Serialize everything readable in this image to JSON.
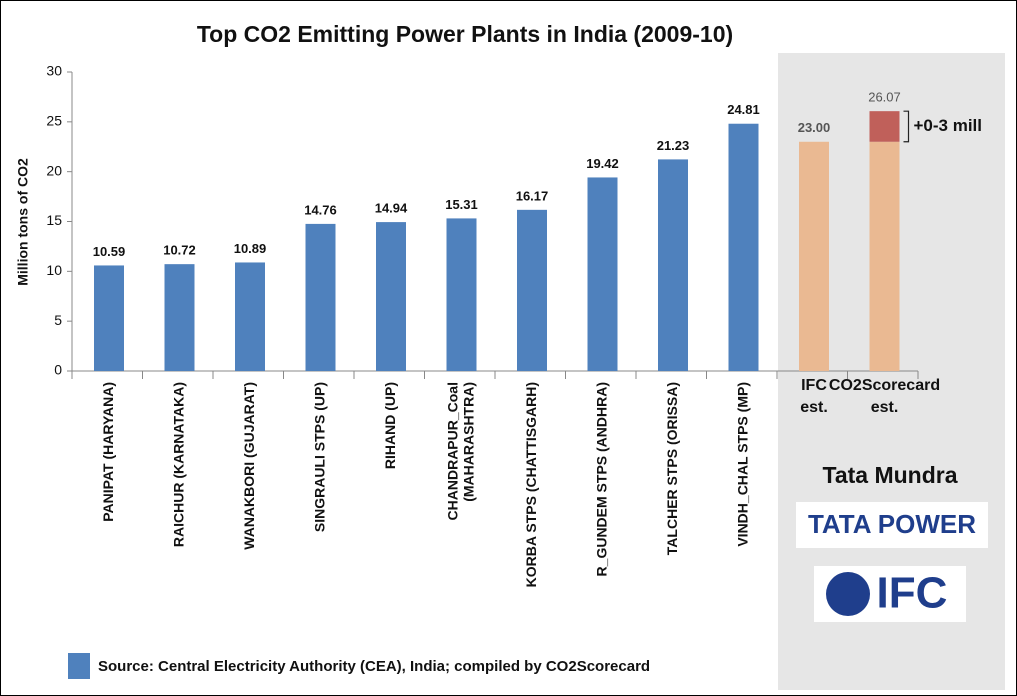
{
  "chart_data": {
    "type": "bar",
    "title": "Top CO2 Emitting Power Plants in India (2009-10)",
    "y_label": "Million tons of CO2",
    "categories": [
      "PANIPAT (HARYANA)",
      "RAICHUR (KARNATAKA)",
      "WANAKBORI (GUJARAT)",
      "SINGRAULI STPS (UP)",
      "RIHAND (UP)",
      "CHANDRAPUR_Coal\n(MAHARASHTRA)",
      "KORBA STPS (CHATTISGARH)",
      "R_GUNDEM STPS (ANDHRA)",
      "TALCHER STPS (ORISSA)",
      "VINDH_CHAL STPS (MP)",
      "IFC\nest.",
      "CO2Scorecard\nest."
    ],
    "series": [
      {
        "name": "Source: Central Electricity Authority (CEA), India; compiled by CO2Scorecard",
        "color": "#4f81bd",
        "values": [
          10.59,
          10.72,
          10.89,
          14.76,
          14.94,
          15.31,
          16.17,
          19.42,
          21.23,
          24.81,
          null,
          null
        ]
      },
      {
        "color": "#eab992",
        "values": [
          null,
          null,
          null,
          null,
          null,
          null,
          null,
          null,
          null,
          null,
          23.0,
          23.0
        ],
        "value_labels": [
          null,
          null,
          null,
          null,
          null,
          null,
          null,
          null,
          null,
          null,
          "23.00",
          null
        ]
      },
      {
        "color": "#c0605a",
        "values": [
          null,
          null,
          null,
          null,
          null,
          null,
          null,
          null,
          null,
          null,
          null,
          3.07
        ]
      }
    ],
    "annotations": [
      {
        "label": "26.07",
        "value": 26.07
      },
      {
        "label": "+0-3 mill"
      }
    ],
    "ylim": [
      0,
      30
    ],
    "yticks": [
      0,
      5,
      10,
      15,
      20,
      25,
      30
    ],
    "legend": "bottom-left",
    "panel": {
      "title": "Tata Mundra",
      "logos": [
        "TATA POWER",
        "IFC"
      ]
    }
  }
}
